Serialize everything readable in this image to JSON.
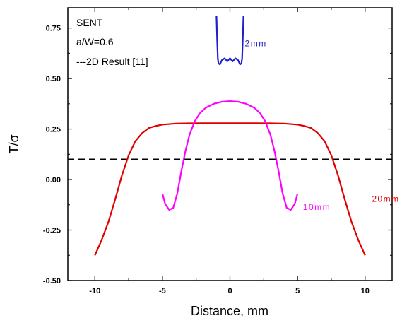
{
  "chart_data": {
    "type": "line",
    "xlabel": "Distance, mm",
    "ylabel": "T/σ",
    "xlim": [
      -12,
      12
    ],
    "ylim": [
      -0.5,
      0.85
    ],
    "x_ticks": [
      -10,
      -5,
      0,
      5,
      10
    ],
    "y_ticks": [
      -0.5,
      -0.25,
      0.0,
      0.25,
      0.5,
      0.75
    ],
    "x_tick_labels": [
      "-10",
      "-5",
      "0",
      "5",
      "10"
    ],
    "y_tick_labels": [
      "-0.50",
      "-0.25",
      "0.00",
      "0.25",
      "0.50",
      "0.75"
    ],
    "grid": false,
    "annotations": {
      "specimen": "SENT",
      "ratio": "a/W=0.6",
      "reference": "---2D Result [11]"
    },
    "reference_line": {
      "y": 0.1,
      "style": "dashed",
      "color": "#000000"
    },
    "series": [
      {
        "name": "20mm",
        "color": "#e00000",
        "label_pos": [
          10.5,
          -0.11
        ],
        "points": [
          [
            -10,
            -0.375
          ],
          [
            -9.5,
            -0.3
          ],
          [
            -9,
            -0.21
          ],
          [
            -8.5,
            -0.1
          ],
          [
            -8,
            0.02
          ],
          [
            -7.5,
            0.12
          ],
          [
            -7,
            0.19
          ],
          [
            -6.5,
            0.23
          ],
          [
            -6,
            0.255
          ],
          [
            -5.5,
            0.265
          ],
          [
            -5,
            0.272
          ],
          [
            -4,
            0.277
          ],
          [
            -3,
            0.278
          ],
          [
            -2,
            0.279
          ],
          [
            0,
            0.279
          ],
          [
            2,
            0.279
          ],
          [
            3,
            0.278
          ],
          [
            4,
            0.277
          ],
          [
            5,
            0.272
          ],
          [
            5.5,
            0.265
          ],
          [
            6,
            0.255
          ],
          [
            6.5,
            0.23
          ],
          [
            7,
            0.19
          ],
          [
            7.5,
            0.12
          ],
          [
            8,
            0.02
          ],
          [
            8.5,
            -0.1
          ],
          [
            9,
            -0.21
          ],
          [
            9.5,
            -0.3
          ],
          [
            10,
            -0.375
          ]
        ]
      },
      {
        "name": "10mm",
        "color": "#ff00ff",
        "label_pos": [
          5.4,
          -0.15
        ],
        "points": [
          [
            -5,
            -0.07
          ],
          [
            -4.8,
            -0.12
          ],
          [
            -4.5,
            -0.15
          ],
          [
            -4.2,
            -0.14
          ],
          [
            -3.9,
            -0.07
          ],
          [
            -3.6,
            0.04
          ],
          [
            -3.3,
            0.14
          ],
          [
            -3,
            0.22
          ],
          [
            -2.6,
            0.29
          ],
          [
            -2.2,
            0.33
          ],
          [
            -1.8,
            0.355
          ],
          [
            -1.2,
            0.375
          ],
          [
            -0.6,
            0.385
          ],
          [
            0,
            0.388
          ],
          [
            0.6,
            0.385
          ],
          [
            1.2,
            0.375
          ],
          [
            1.8,
            0.355
          ],
          [
            2.2,
            0.33
          ],
          [
            2.6,
            0.29
          ],
          [
            3,
            0.22
          ],
          [
            3.3,
            0.14
          ],
          [
            3.6,
            0.04
          ],
          [
            3.9,
            -0.07
          ],
          [
            4.2,
            -0.14
          ],
          [
            4.5,
            -0.15
          ],
          [
            4.8,
            -0.12
          ],
          [
            5,
            -0.07
          ]
        ]
      },
      {
        "name": "2mm",
        "color": "#1f1fd0",
        "label_pos": [
          1.1,
          0.66
        ],
        "points": [
          [
            -1.0,
            0.81
          ],
          [
            -0.95,
            0.7
          ],
          [
            -0.9,
            0.6
          ],
          [
            -0.85,
            0.575
          ],
          [
            -0.75,
            0.57
          ],
          [
            -0.6,
            0.59
          ],
          [
            -0.4,
            0.6
          ],
          [
            -0.2,
            0.585
          ],
          [
            0,
            0.6
          ],
          [
            0.2,
            0.585
          ],
          [
            0.4,
            0.6
          ],
          [
            0.6,
            0.59
          ],
          [
            0.75,
            0.57
          ],
          [
            0.85,
            0.575
          ],
          [
            0.9,
            0.6
          ],
          [
            0.95,
            0.7
          ],
          [
            1.0,
            0.81
          ]
        ]
      }
    ]
  }
}
